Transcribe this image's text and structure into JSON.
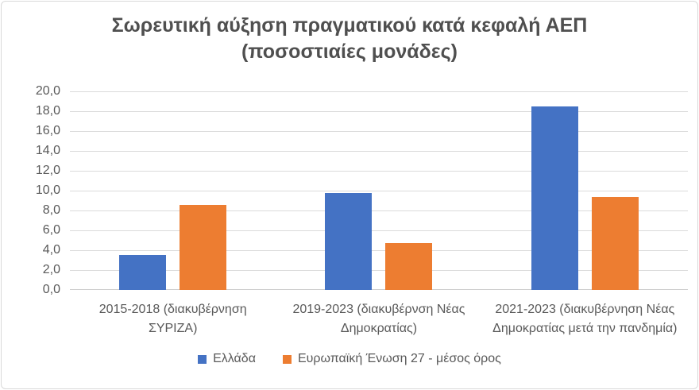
{
  "chart_data": {
    "type": "bar",
    "title": "Σωρευτική αύξηση πραγματικού κατά κεφαλή ΑΕΠ (ποσοστιαίες μονάδες)",
    "title_lines": [
      "Σωρευτική αύξηση πραγματικού κατά κεφαλή ΑΕΠ",
      "(ποσοστιαίες μονάδες)"
    ],
    "categories": [
      "2015-2018 (διακυβέρνηση ΣΥΡΙΖΑ)",
      "2019-2023 (διακυβέρνση Νέας Δημοκρατίας)",
      "2021-2023 (διακυβέρνηση Νέας Δημοκρατίας μετά την πανδημία)"
    ],
    "categories_lines": [
      [
        "2015-2018 (διακυβέρνηση",
        "ΣΥΡΙΖΑ)"
      ],
      [
        "2019-2023 (διακυβέρνση Νέας",
        "Δημοκρατίας)"
      ],
      [
        "2021-2023 (διακυβέρνηση Νέας",
        "Δημοκρατίας μετά την πανδημία)"
      ]
    ],
    "series": [
      {
        "name": "Ελλάδα",
        "color": "#4472C4",
        "values": [
          3.5,
          9.8,
          18.5
        ]
      },
      {
        "name": "Ευρωπαϊκή Ένωση 27 - μέσος όρος",
        "color": "#ED7D31",
        "values": [
          8.6,
          4.7,
          9.4
        ]
      }
    ],
    "ylim": [
      0,
      20
    ],
    "ytick_step": 2,
    "ytick_labels": [
      "0,0",
      "2,0",
      "4,0",
      "6,0",
      "8,0",
      "10,0",
      "12,0",
      "14,0",
      "16,0",
      "18,0",
      "20,0"
    ],
    "grid": true,
    "legend_position": "bottom",
    "colors": {
      "grid": "#DBDBDB",
      "axis_line": "#CFCFCF",
      "text": "#595959",
      "title_text": "#4F4F4F",
      "frame_border": "#D9D9D9"
    }
  }
}
